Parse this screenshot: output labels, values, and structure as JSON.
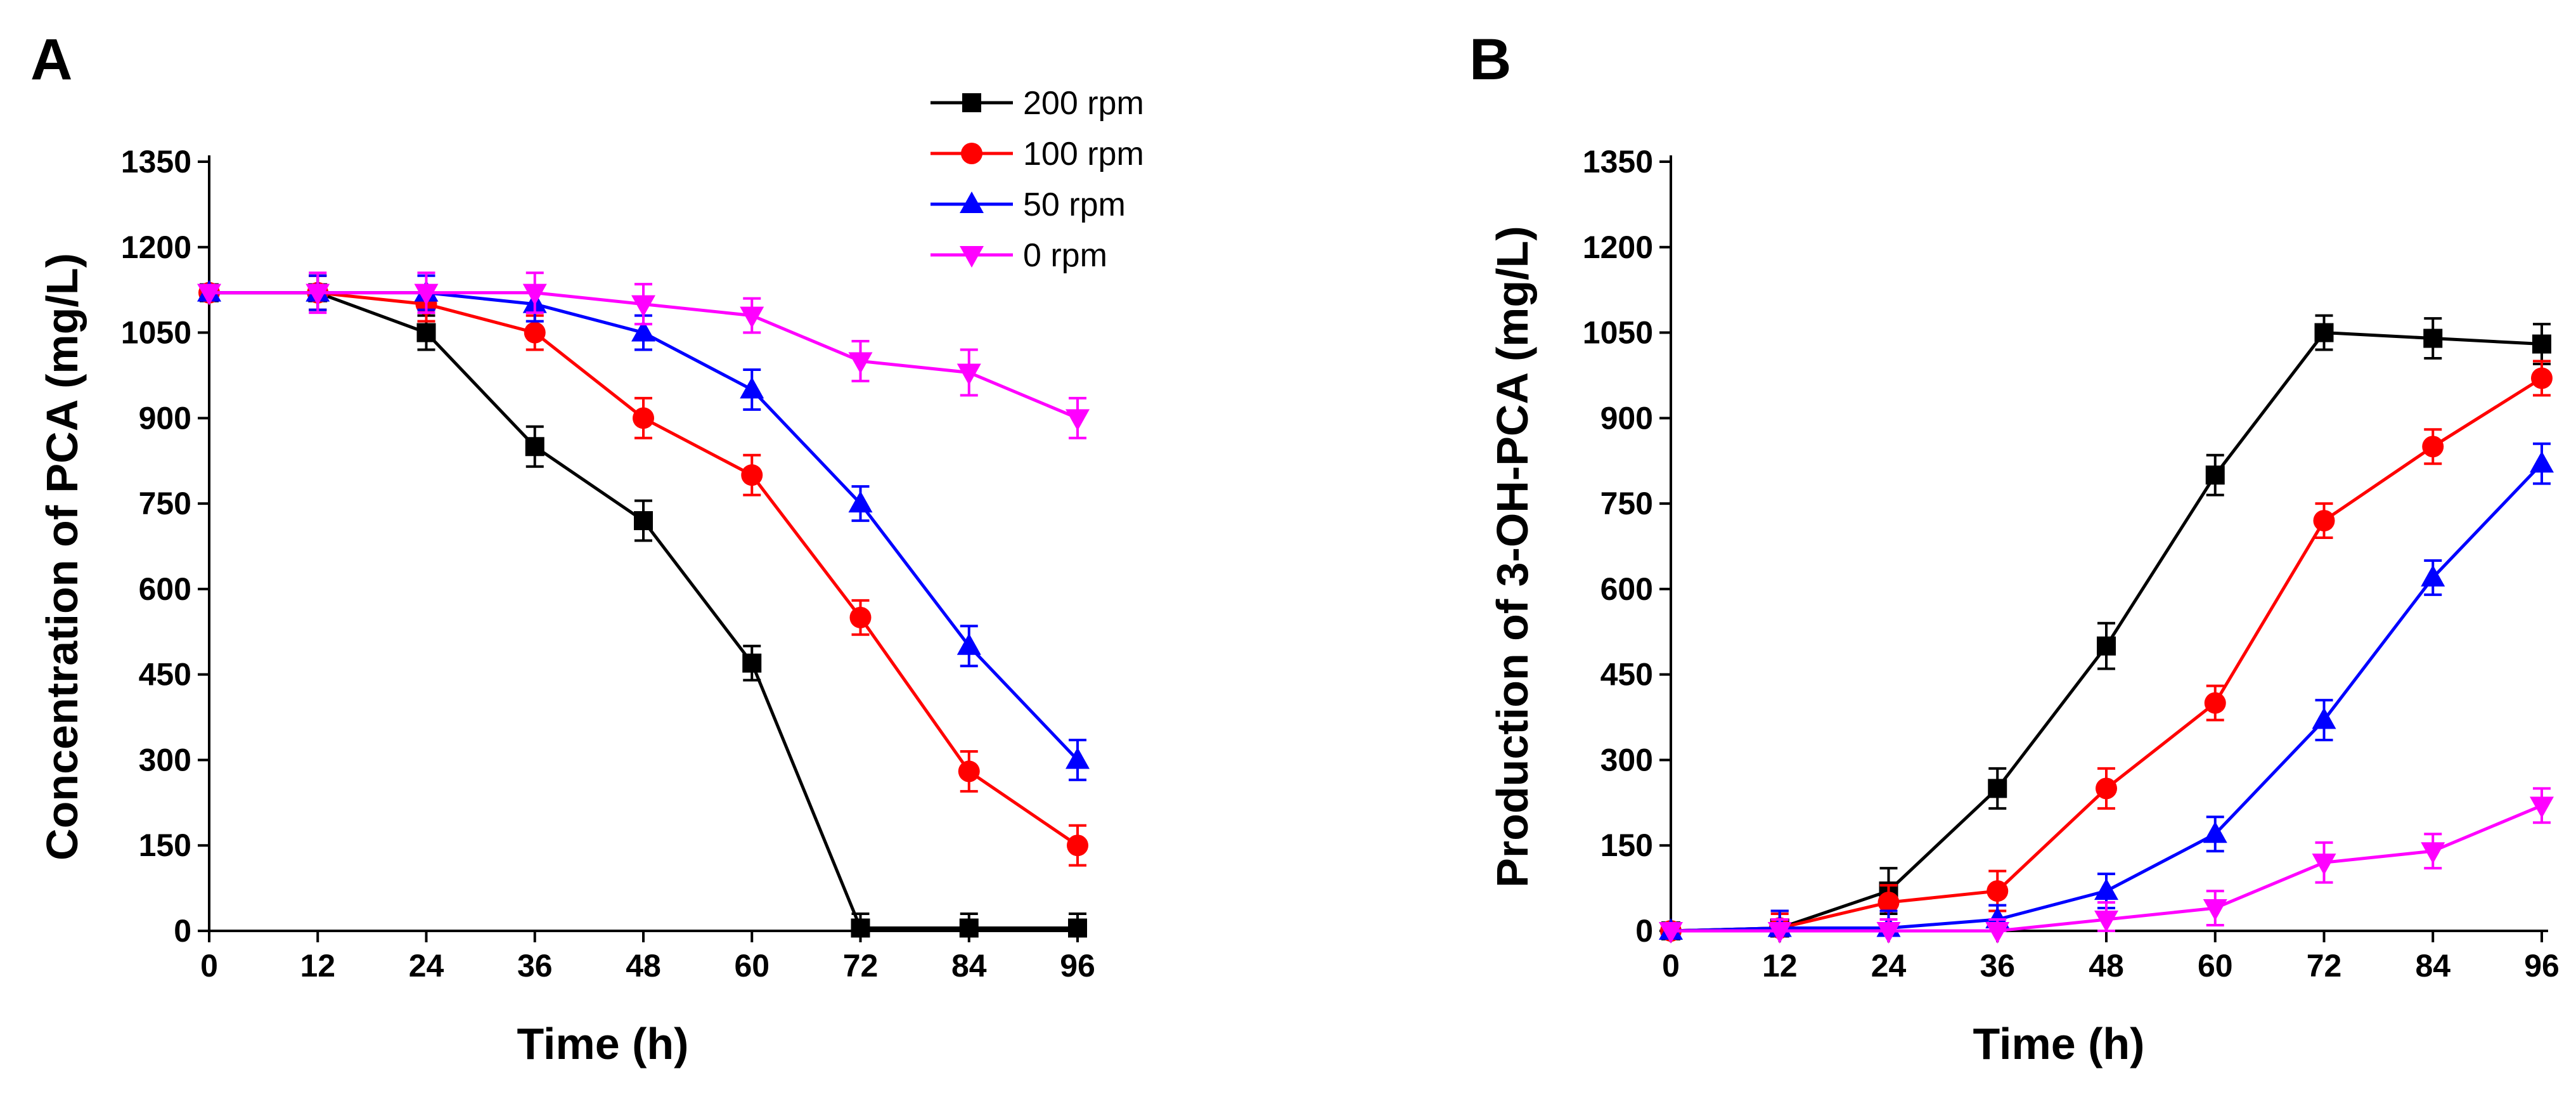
{
  "chart_data": [
    {
      "panel": "A",
      "type": "line",
      "title": "",
      "xlabel": "Time (h)",
      "ylabel": "Concentration of PCA (mg/L)",
      "xlim": [
        0,
        96
      ],
      "ylim": [
        0,
        1350
      ],
      "xticks": [
        "0",
        "12",
        "24",
        "36",
        "48",
        "60",
        "72",
        "84",
        "96"
      ],
      "yticks": [
        "0",
        "150",
        "300",
        "450",
        "600",
        "750",
        "900",
        "1050",
        "1200",
        "1350"
      ],
      "legend": {
        "position": "top-right",
        "entries": [
          "200 rpm",
          "100 rpm",
          "50 rpm",
          "0 rpm"
        ]
      },
      "x": [
        0,
        12,
        24,
        36,
        48,
        60,
        72,
        84,
        96
      ],
      "series": [
        {
          "name": "200 rpm",
          "color": "#000000",
          "marker": "square",
          "values": [
            1120,
            1120,
            1050,
            850,
            720,
            470,
            5,
            5,
            5
          ],
          "errors": [
            0,
            30,
            30,
            35,
            35,
            30,
            25,
            25,
            25
          ]
        },
        {
          "name": "100 rpm",
          "color": "#ff0000",
          "marker": "circle",
          "values": [
            1120,
            1120,
            1100,
            1050,
            900,
            800,
            550,
            280,
            150
          ],
          "errors": [
            0,
            30,
            30,
            30,
            35,
            35,
            30,
            35,
            35
          ]
        },
        {
          "name": "50 rpm",
          "color": "#0000ff",
          "marker": "triangle-up",
          "values": [
            1120,
            1120,
            1120,
            1100,
            1050,
            950,
            750,
            500,
            300
          ],
          "errors": [
            0,
            30,
            30,
            30,
            30,
            35,
            30,
            35,
            35
          ]
        },
        {
          "name": "0 rpm",
          "color": "#ff00ff",
          "marker": "triangle-down",
          "values": [
            1120,
            1120,
            1120,
            1120,
            1100,
            1080,
            1000,
            980,
            900
          ],
          "errors": [
            0,
            35,
            35,
            35,
            35,
            30,
            35,
            40,
            35
          ]
        }
      ]
    },
    {
      "panel": "B",
      "type": "line",
      "title": "",
      "xlabel": "Time (h)",
      "ylabel": "Production of 3-OH-PCA (mg/L)",
      "xlim": [
        0,
        96
      ],
      "ylim": [
        0,
        1350
      ],
      "xticks": [
        "0",
        "12",
        "24",
        "36",
        "48",
        "60",
        "72",
        "84",
        "96"
      ],
      "yticks": [
        "0",
        "150",
        "300",
        "450",
        "600",
        "750",
        "900",
        "1050",
        "1200",
        "1350"
      ],
      "x": [
        0,
        12,
        24,
        36,
        48,
        60,
        72,
        84,
        96
      ],
      "series": [
        {
          "name": "200 rpm",
          "color": "#000000",
          "marker": "square",
          "values": [
            0,
            5,
            70,
            250,
            500,
            800,
            1050,
            1040,
            1030
          ],
          "errors": [
            0,
            30,
            40,
            35,
            40,
            35,
            30,
            35,
            35
          ]
        },
        {
          "name": "100 rpm",
          "color": "#ff0000",
          "marker": "circle",
          "values": [
            0,
            5,
            50,
            70,
            250,
            400,
            720,
            850,
            970
          ],
          "errors": [
            0,
            25,
            30,
            35,
            35,
            30,
            30,
            30,
            30
          ]
        },
        {
          "name": "50 rpm",
          "color": "#0000ff",
          "marker": "triangle-up",
          "values": [
            0,
            5,
            5,
            20,
            70,
            170,
            370,
            620,
            820
          ],
          "errors": [
            0,
            30,
            30,
            25,
            30,
            30,
            35,
            30,
            35
          ]
        },
        {
          "name": "0 rpm",
          "color": "#ff00ff",
          "marker": "triangle-down",
          "values": [
            0,
            0,
            0,
            0,
            20,
            40,
            120,
            140,
            220
          ],
          "errors": [
            0,
            20,
            20,
            20,
            30,
            30,
            35,
            30,
            30
          ]
        }
      ]
    }
  ]
}
